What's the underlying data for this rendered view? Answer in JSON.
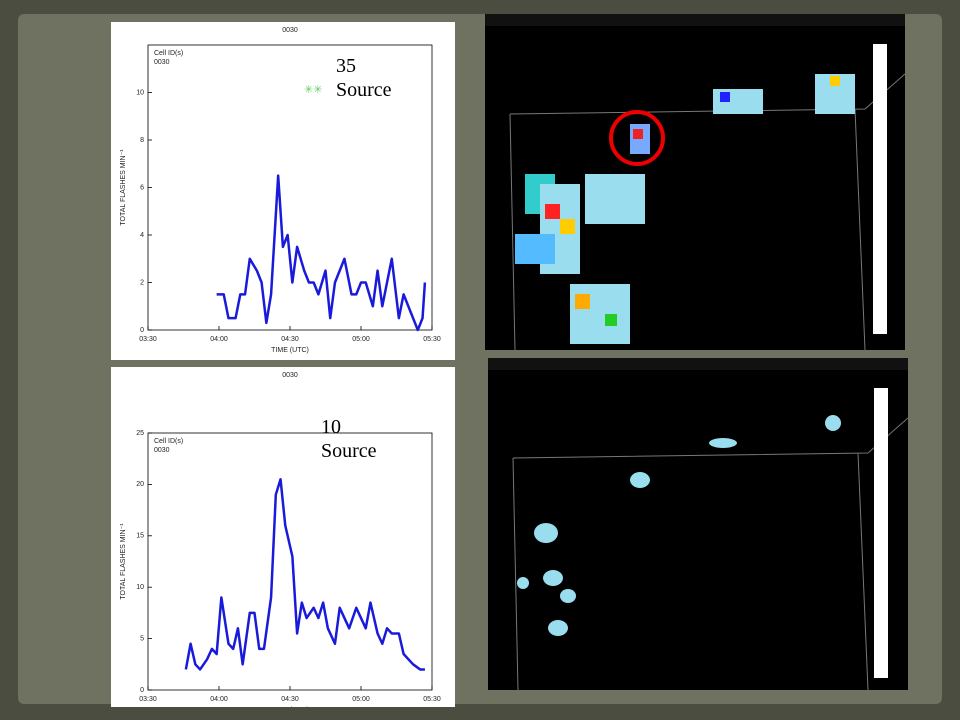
{
  "chart_data": [
    {
      "type": "line",
      "title": "0030",
      "legend_title": "Cell ID(s)",
      "legend_entry": "0030",
      "xlabel": "TIME (UTC)",
      "ylabel": "TOTAL FLASHES MIN⁻¹",
      "annotation": "35 Source",
      "annotation_mark": "✳✳",
      "xlim": [
        "03:30",
        "05:30"
      ],
      "xticks": [
        "03:30",
        "04:00",
        "04:30",
        "05:00",
        "05:30"
      ],
      "ylim": [
        0,
        12
      ],
      "yticks": [
        0,
        2,
        4,
        6,
        8,
        10
      ],
      "x": [
        "03:59",
        "04:02",
        "04:04",
        "04:07",
        "04:09",
        "04:11",
        "04:13",
        "04:16",
        "04:18",
        "04:20",
        "04:22",
        "04:25",
        "04:27",
        "04:29",
        "04:31",
        "04:33",
        "04:36",
        "04:38",
        "04:40",
        "04:42",
        "04:45",
        "04:47",
        "04:49",
        "04:51",
        "04:53",
        "04:56",
        "04:58",
        "05:00",
        "05:02",
        "05:05",
        "05:07",
        "05:09",
        "05:11",
        "05:13",
        "05:16",
        "05:18",
        "05:20",
        "05:22",
        "05:24",
        "05:26",
        "05:27"
      ],
      "series": [
        {
          "name": "0030",
          "color": "#1a1adb",
          "values": [
            1.5,
            1.5,
            0.5,
            0.5,
            1.5,
            1.5,
            3,
            2.5,
            2,
            0.3,
            1.5,
            6.5,
            3.5,
            4,
            2,
            3.5,
            2.5,
            2,
            2,
            1.5,
            2.5,
            0.5,
            2,
            2.5,
            3,
            1.5,
            1.5,
            2,
            2,
            1,
            2.5,
            1,
            2,
            3,
            0.5,
            1.5,
            1,
            0.5,
            0,
            0.5,
            2
          ]
        }
      ]
    },
    {
      "type": "line",
      "title": "0030",
      "legend_title": "Cell ID(s)",
      "legend_entry": "0030",
      "xlabel": "TIME (UTC)",
      "ylabel": "TOTAL FLASHES MIN⁻¹",
      "annotation": "10 Source",
      "xlim": [
        "03:30",
        "05:30"
      ],
      "xticks": [
        "03:30",
        "04:00",
        "04:30",
        "05:00",
        "05:30"
      ],
      "ylim": [
        0,
        25
      ],
      "yticks": [
        0,
        5,
        10,
        15,
        20,
        25
      ],
      "x": [
        "03:46",
        "03:48",
        "03:50",
        "03:52",
        "03:55",
        "03:57",
        "03:59",
        "04:01",
        "04:04",
        "04:06",
        "04:08",
        "04:10",
        "04:13",
        "04:15",
        "04:17",
        "04:19",
        "04:22",
        "04:24",
        "04:26",
        "04:28",
        "04:31",
        "04:33",
        "04:35",
        "04:37",
        "04:40",
        "04:42",
        "04:44",
        "04:46",
        "04:49",
        "04:51",
        "04:53",
        "04:55",
        "04:58",
        "05:00",
        "05:02",
        "05:04",
        "05:07",
        "05:09",
        "05:11",
        "05:13",
        "05:16",
        "05:18",
        "05:20",
        "05:22",
        "05:25",
        "05:27"
      ],
      "series": [
        {
          "name": "0030",
          "color": "#1a1adb",
          "values": [
            2,
            4.5,
            2.5,
            2,
            3,
            4,
            3.5,
            9,
            4.5,
            4,
            6,
            2.5,
            7.5,
            7.5,
            4,
            4,
            9,
            19,
            20.5,
            16,
            13,
            5.5,
            8.5,
            7,
            8,
            7,
            8.5,
            6,
            4.5,
            8,
            7,
            6,
            8,
            7,
            6,
            8.5,
            5.5,
            4.5,
            6,
            5.5,
            5.5,
            3.5,
            3,
            2.5,
            2,
            2
          ]
        }
      ]
    }
  ]
}
